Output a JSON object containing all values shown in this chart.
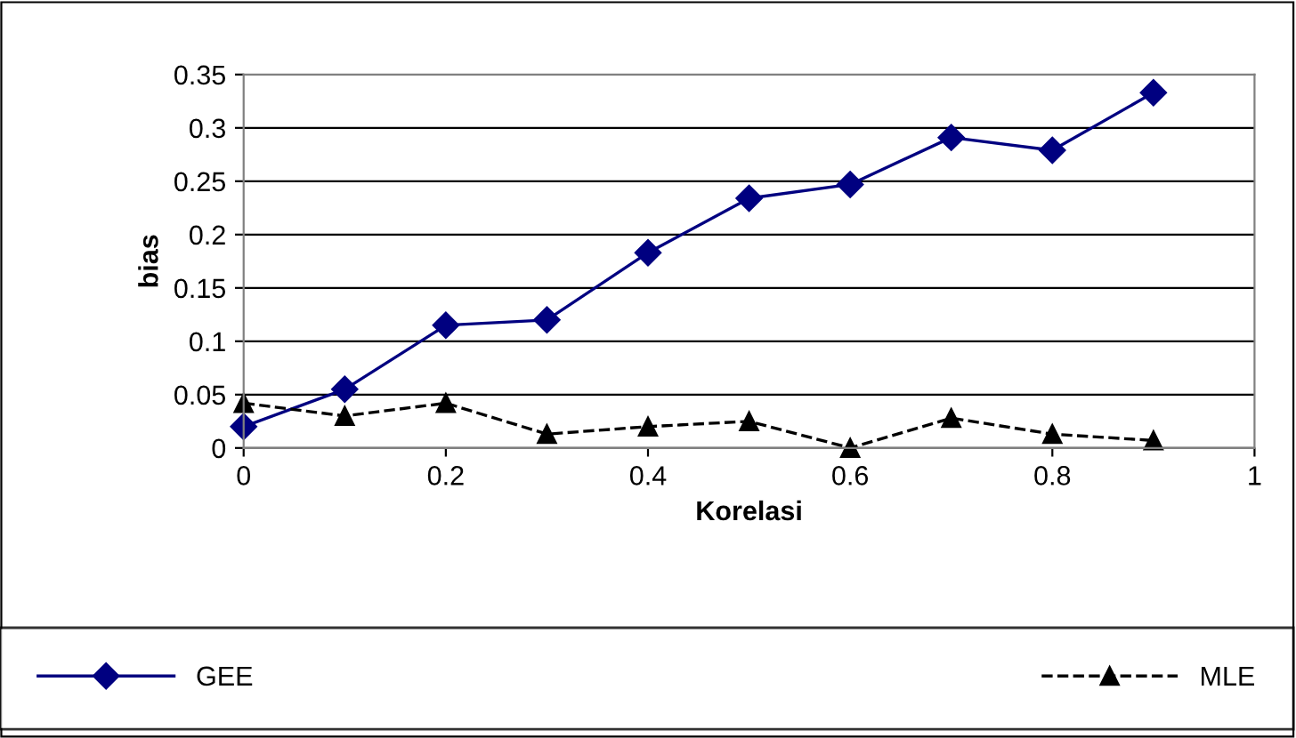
{
  "chart_data": {
    "type": "line",
    "xlabel": "Korelasi",
    "ylabel": "bias",
    "x": [
      0,
      0.1,
      0.2,
      0.3,
      0.4,
      0.5,
      0.6,
      0.7,
      0.8,
      0.9
    ],
    "series": [
      {
        "name": "GEE",
        "color": "#000080",
        "marker": "diamond",
        "line_style": "solid",
        "values": [
          0.02,
          0.055,
          0.115,
          0.12,
          0.183,
          0.234,
          0.247,
          0.291,
          0.279,
          0.333
        ]
      },
      {
        "name": "MLE",
        "color": "#000000",
        "marker": "triangle",
        "line_style": "dashed",
        "values": [
          0.042,
          0.03,
          0.042,
          0.013,
          0.02,
          0.025,
          0.0,
          0.028,
          0.013,
          0.007
        ]
      }
    ],
    "xlim": [
      0,
      1
    ],
    "xticks": [
      0,
      0.2,
      0.4,
      0.6,
      0.8,
      1
    ],
    "ylim": [
      0,
      0.35
    ],
    "yticks": [
      0,
      0.05,
      0.1,
      0.15,
      0.2,
      0.25,
      0.3,
      0.35
    ],
    "grid": "y",
    "legend": "bottom"
  }
}
